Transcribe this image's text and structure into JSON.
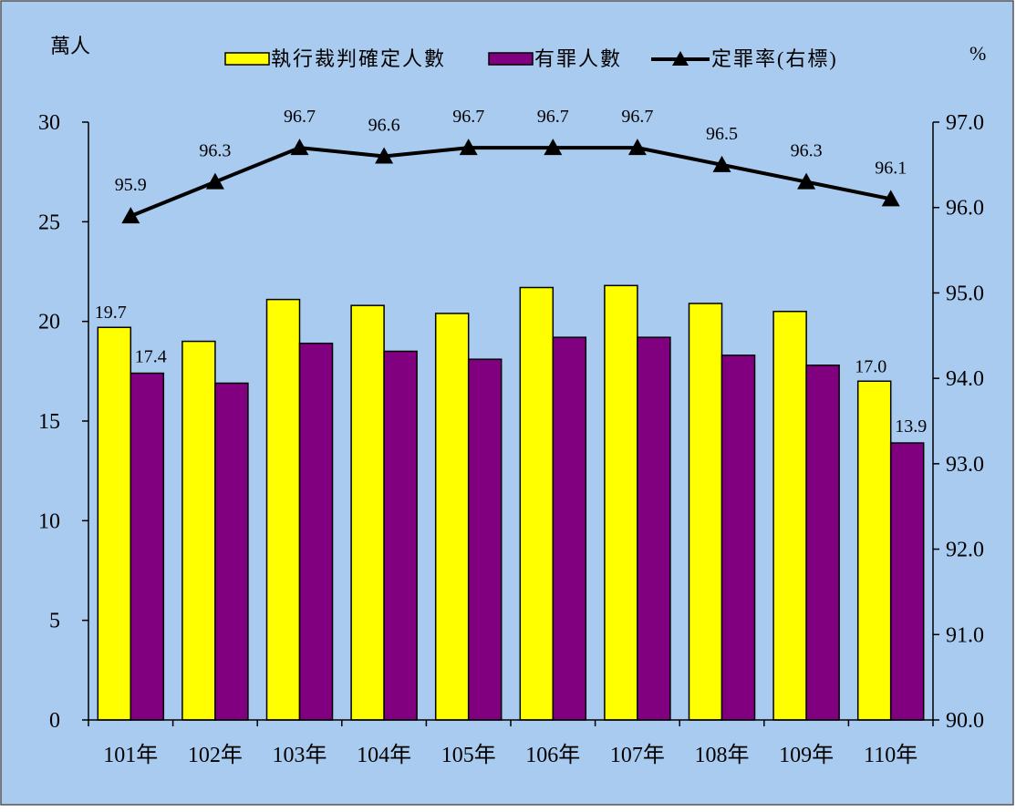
{
  "colors": {
    "background": "#a9cbef",
    "border": "#555555",
    "bar_executed": "#ffff00",
    "bar_convicted": "#800080",
    "line_rate": "#000000"
  },
  "chart_data": {
    "type": "bar",
    "categories": [
      "101年",
      "102年",
      "103年",
      "104年",
      "105年",
      "106年",
      "107年",
      "108年",
      "109年",
      "110年"
    ],
    "series": [
      {
        "name": "執行裁判確定人數",
        "type": "bar",
        "axis": "left",
        "values": [
          19.7,
          19.0,
          21.1,
          20.8,
          20.4,
          21.7,
          21.8,
          20.9,
          20.5,
          17.0
        ]
      },
      {
        "name": "有罪人數",
        "type": "bar",
        "axis": "left",
        "values": [
          17.4,
          16.9,
          18.9,
          18.5,
          18.1,
          19.2,
          19.2,
          18.3,
          17.8,
          13.9
        ]
      },
      {
        "name": "定罪率(右標)",
        "type": "line",
        "axis": "right",
        "values": [
          95.9,
          96.3,
          96.7,
          96.6,
          96.7,
          96.7,
          96.7,
          96.5,
          96.3,
          96.1
        ]
      }
    ],
    "bar_value_labels": {
      "executed": [
        "19.7",
        "",
        "",
        "",
        "",
        "",
        "",
        "",
        "",
        "17.0"
      ],
      "convicted": [
        "17.4",
        "",
        "",
        "",
        "",
        "",
        "",
        "",
        "",
        "13.9"
      ]
    },
    "line_value_labels": [
      "95.9",
      "96.3",
      "96.7",
      "96.6",
      "96.7",
      "96.7",
      "96.7",
      "96.5",
      "96.3",
      "96.1"
    ],
    "y_left": {
      "unit": "萬人",
      "range": [
        0,
        30
      ],
      "ticks": [
        "0",
        "5",
        "10",
        "15",
        "20",
        "25",
        "30"
      ]
    },
    "y_right": {
      "unit": "%",
      "range": [
        90,
        97
      ],
      "ticks": [
        "90.0",
        "91.0",
        "92.0",
        "93.0",
        "94.0",
        "95.0",
        "96.0",
        "97.0"
      ]
    },
    "legend_position": "top",
    "grid": false
  }
}
